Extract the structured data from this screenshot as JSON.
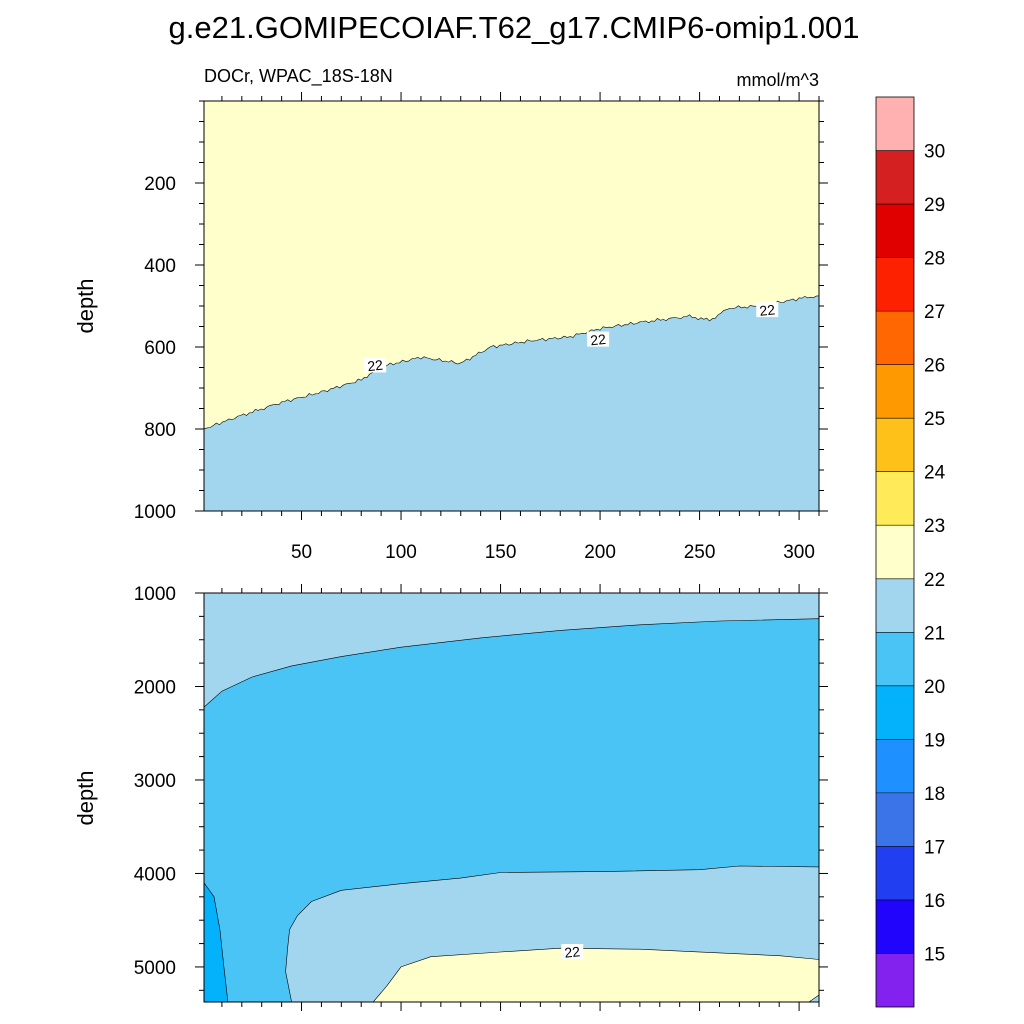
{
  "title": "g.e21.GOMIPECOIAF.T62_g17.CMIP6-omip1.001",
  "subtitle_left": "DOCr, WPAC_18S-18N",
  "subtitle_right": "mmol/m^3",
  "chart_data": {
    "type": "contour",
    "variable": "DOCr",
    "region": "WPAC_18S-18N",
    "units": "mmol/m^3",
    "x_ticks": [
      50,
      100,
      150,
      200,
      250,
      300
    ],
    "xlim": [
      1,
      310
    ],
    "panels": [
      {
        "name": "upper",
        "ylabel": "depth",
        "ylim": [
          0,
          1000
        ],
        "y_ticks": [
          200,
          400,
          600,
          800,
          1000
        ],
        "show_x_tick_labels": true,
        "contour_labels": [
          {
            "text": "22",
            "x": 87,
            "y": 645
          },
          {
            "text": "22",
            "x": 199,
            "y": 582
          },
          {
            "text": "22",
            "x": 284,
            "y": 510
          }
        ],
        "filled_regions": [
          {
            "range": "22-23",
            "color": "#ffffcc",
            "description": "above the 22 contour (~800 m at x=1 rising to ~475 m at x=310)"
          },
          {
            "range": "21-22",
            "color": "#a1d6ee",
            "description": "below the 22 contour"
          }
        ],
        "contour_22_depth": [
          {
            "x": 1,
            "depth": 800
          },
          {
            "x": 15,
            "depth": 775
          },
          {
            "x": 40,
            "depth": 735
          },
          {
            "x": 60,
            "depth": 710
          },
          {
            "x": 80,
            "depth": 680
          },
          {
            "x": 90,
            "depth": 648
          },
          {
            "x": 110,
            "depth": 625
          },
          {
            "x": 130,
            "depth": 640
          },
          {
            "x": 145,
            "depth": 600
          },
          {
            "x": 165,
            "depth": 585
          },
          {
            "x": 185,
            "depth": 575
          },
          {
            "x": 200,
            "depth": 555
          },
          {
            "x": 220,
            "depth": 540
          },
          {
            "x": 245,
            "depth": 525
          },
          {
            "x": 255,
            "depth": 535
          },
          {
            "x": 265,
            "depth": 505
          },
          {
            "x": 280,
            "depth": 500
          },
          {
            "x": 300,
            "depth": 482
          },
          {
            "x": 310,
            "depth": 475
          }
        ]
      },
      {
        "name": "lower",
        "ylabel": "depth",
        "ylim": [
          1000,
          5375
        ],
        "y_ticks": [
          1000,
          2000,
          3000,
          4000,
          5000
        ],
        "show_x_tick_labels": false,
        "contour_labels": [
          {
            "text": "22",
            "x": 186,
            "y": 4840
          }
        ],
        "filled_regions": [
          {
            "range": "21-22",
            "color": "#a1d6ee",
            "description": "upper band, ~1000 m to ~2200-1280 m, and band between ~3900 m and the deep 22 core"
          },
          {
            "range": "20-21",
            "color": "#4ac3f5",
            "description": "main mid-depth body between ~1300-2200 m and ~3950-4100 m"
          },
          {
            "range": "19-20",
            "color": "#04b1fb",
            "description": "small deep patch near x=1-13 below ~4100 m"
          },
          {
            "range": "22-23",
            "color": "#ffffcc",
            "description": "deep core below ~4800 m between x~86 and x~310"
          }
        ]
      }
    ],
    "colorbar": {
      "levels": [
        15,
        16,
        17,
        18,
        19,
        20,
        21,
        22,
        23,
        24,
        25,
        26,
        27,
        28,
        29,
        30
      ],
      "colors": [
        "#8322ee",
        "#2104fb",
        "#213ff0",
        "#3b74e8",
        "#1e90ff",
        "#04b1fb",
        "#4ac3f5",
        "#a1d6ee",
        "#ffffcc",
        "#ffeb59",
        "#fec11a",
        "#fe9902",
        "#fe6701",
        "#fe2100",
        "#e10000",
        "#d42020",
        "#ffb1b1"
      ]
    }
  }
}
